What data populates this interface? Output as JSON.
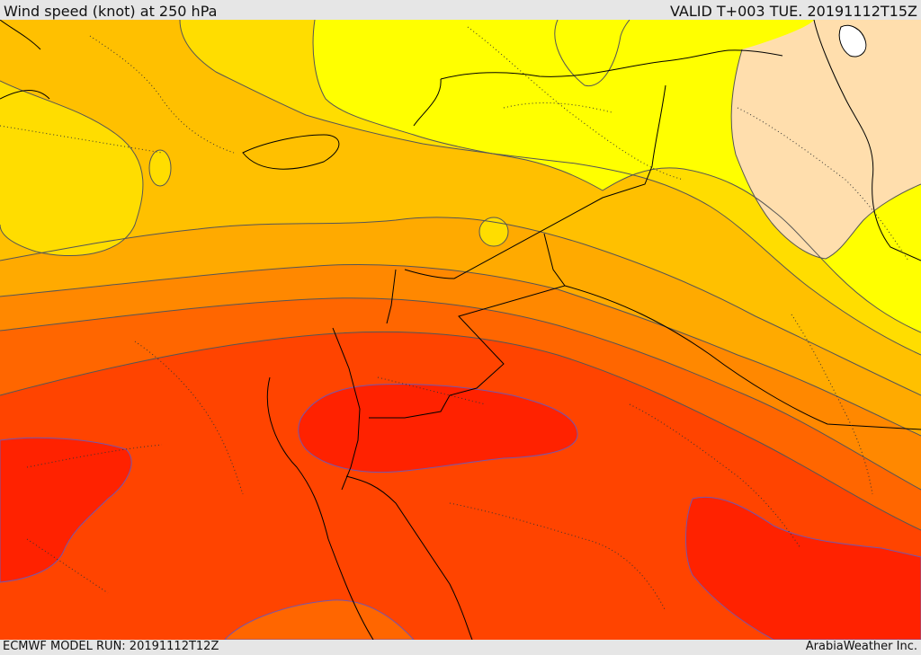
{
  "header": {
    "title": "Wind speed (knot) at 250 hPa",
    "valid": "VALID T+003 TUE. 20191112T15Z"
  },
  "footer": {
    "model_run": "ECMWF MODEL RUN: 20191112T12Z",
    "credit": "ArabiaWeather Inc."
  },
  "colors": {
    "band_lightest": "#ffdead",
    "band_yellow": "#ffff00",
    "band_gold": "#ffdd00",
    "band_amber": "#ffc000",
    "band_orange_light": "#ffaa00",
    "band_orange": "#ff8800",
    "band_orange_dark": "#ff6600",
    "band_red_orange": "#ff4400",
    "band_red": "#ff2200",
    "contour": "#555555",
    "max_contour": "#7755aa",
    "border": "#000000"
  }
}
